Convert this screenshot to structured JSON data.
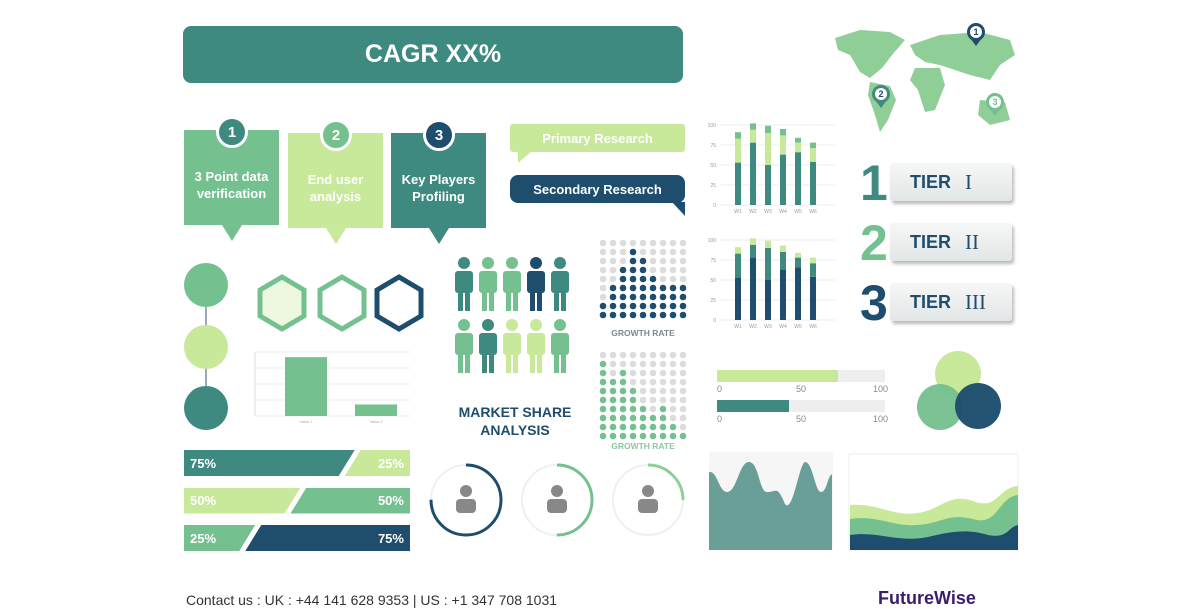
{
  "banner": {
    "title": "CAGR XX%"
  },
  "steps": [
    {
      "num": "1",
      "text": "3 Point data verification",
      "color": "#74c08f"
    },
    {
      "num": "2",
      "text": "End user analysis",
      "color": "#c8e89a"
    },
    {
      "num": "3",
      "text": "Key Players Profiling",
      "color": "#3f8a80"
    }
  ],
  "research": {
    "primary": "Primary Research",
    "secondary": "Secondary Research"
  },
  "tiers": [
    {
      "num": "1",
      "label": "TIER",
      "roman": "I"
    },
    {
      "num": "2",
      "label": "TIER",
      "roman": "II"
    },
    {
      "num": "3",
      "label": "TIER",
      "roman": "III"
    }
  ],
  "map_pins": [
    "1",
    "2",
    "3"
  ],
  "market_share": {
    "line1": "MARKET SHARE",
    "line2": "ANALYSIS"
  },
  "growth_rate": [
    "GROWTH RATE",
    "GROWTH RATE"
  ],
  "progress": [
    {
      "value": 72,
      "ticks": [
        "0",
        "50",
        "100"
      ],
      "color": "#c8e89a"
    },
    {
      "value": 43,
      "ticks": [
        "0",
        "50",
        "100"
      ],
      "color": "#3f8a80"
    }
  ],
  "percent_bars": [
    {
      "left": "75%",
      "right": "25%"
    },
    {
      "left": "50%",
      "right": "50%"
    },
    {
      "left": "25%",
      "right": "75%"
    }
  ],
  "rings": [
    75,
    50,
    25
  ],
  "colors": {
    "teal": "#3f8a80",
    "navy": "#1e4d6e",
    "green": "#74c08f",
    "lime": "#c8e89a"
  },
  "chart_data": [
    {
      "type": "bar",
      "stacked": true,
      "categories": [
        "W1",
        "W2",
        "W3",
        "W4",
        "W5",
        "W6"
      ],
      "ylim": [
        0,
        100
      ],
      "yticks": [
        "0",
        "25",
        "50",
        "75",
        "100"
      ],
      "series": [
        {
          "values": [
            53,
            78,
            50,
            63,
            66,
            54
          ]
        },
        {
          "values": [
            30,
            16,
            40,
            24,
            12,
            17
          ]
        },
        {
          "values": [
            8,
            8,
            9,
            8,
            6,
            7
          ]
        }
      ]
    },
    {
      "type": "bar",
      "stacked": true,
      "categories": [
        "W1",
        "W2",
        "W3",
        "W4",
        "W5",
        "W6"
      ],
      "ylim": [
        0,
        100
      ],
      "yticks": [
        "0",
        "25",
        "50",
        "75",
        "100"
      ],
      "series": [
        {
          "values": [
            53,
            78,
            50,
            63,
            66,
            54
          ]
        },
        {
          "values": [
            30,
            16,
            40,
            22,
            12,
            17
          ]
        },
        {
          "values": [
            8,
            8,
            9,
            8,
            6,
            7
          ]
        }
      ]
    },
    {
      "type": "bar",
      "categories": [
        "Value 1",
        "Value 2"
      ],
      "values": [
        92,
        18
      ],
      "ylim": [
        0,
        100
      ]
    }
  ],
  "footer": {
    "contact": "Contact us : UK : +44 141 628 9353 | US : +1 347 708 1031",
    "logo": "FutureWise"
  }
}
